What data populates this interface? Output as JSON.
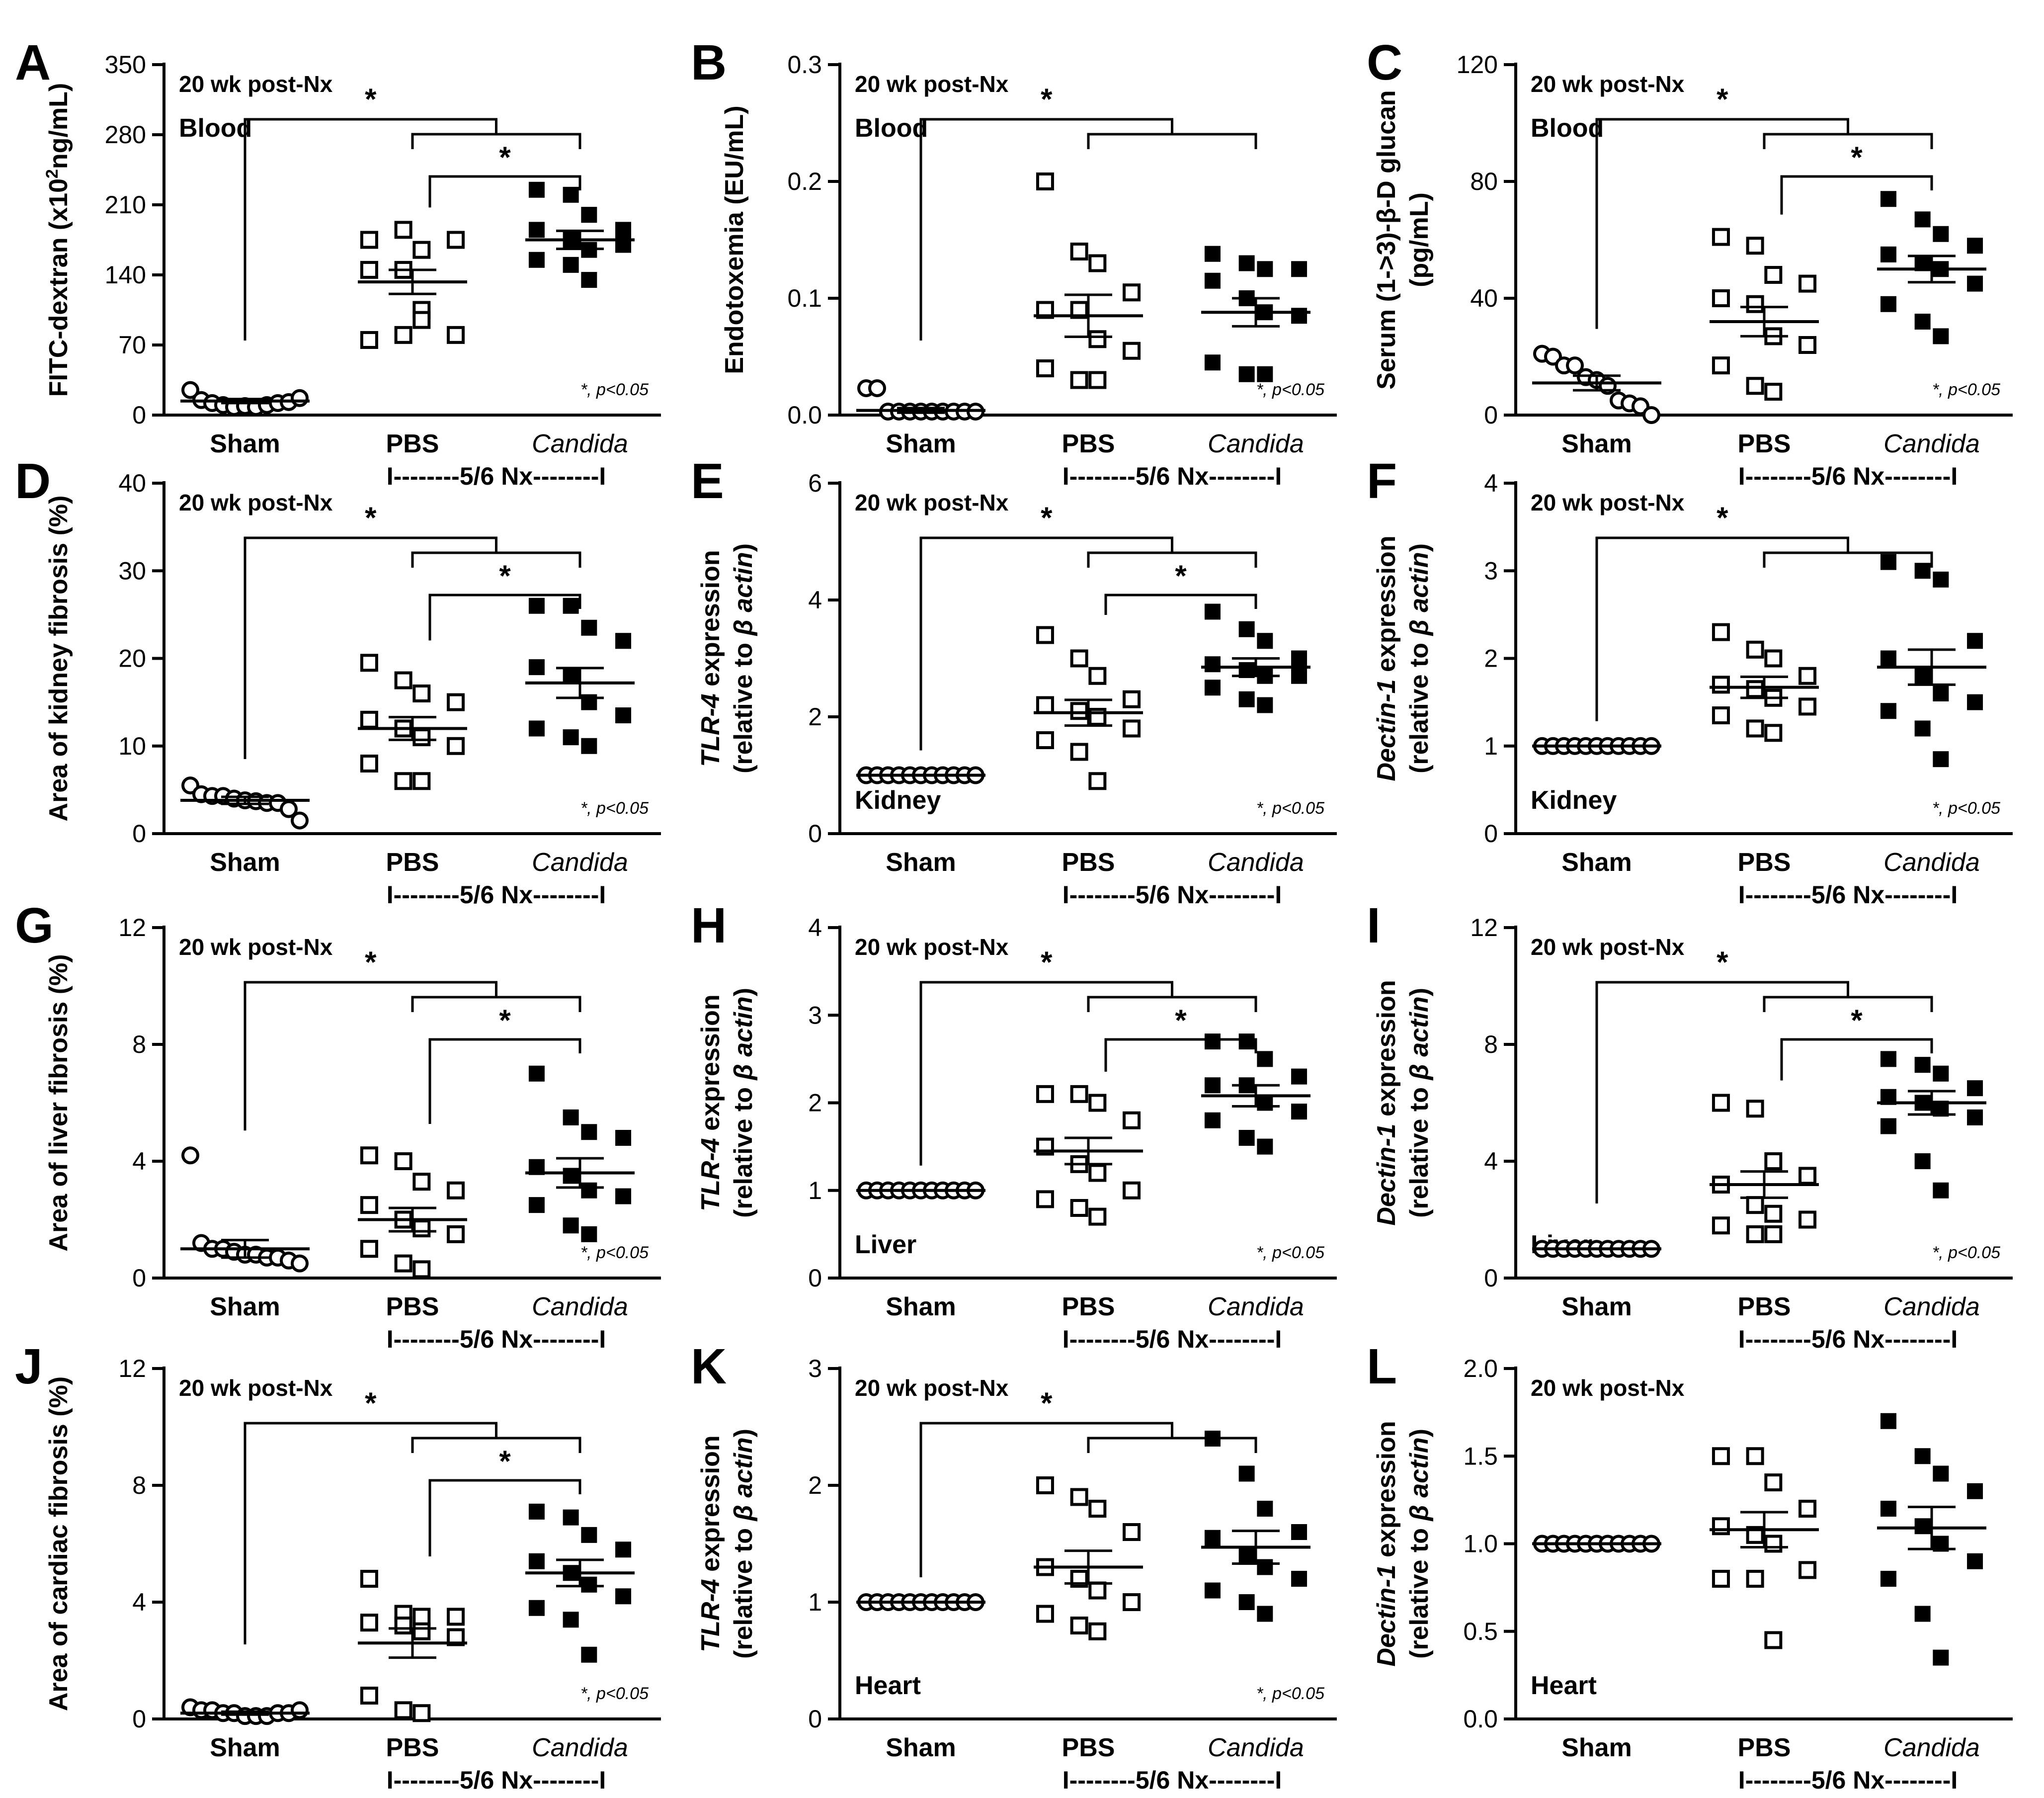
{
  "categories": [
    "Sham",
    "PBS",
    "Candida"
  ],
  "group_label": "I--------5/6 Nx--------I",
  "significance_note": "*, p<0.05",
  "star": "*",
  "chart_data": [
    {
      "type": "scatter",
      "letter": "A",
      "annotation": "20 wk post-Nx",
      "tissue": "Blood",
      "ylabel": [
        {
          "t": "FITC-dextran (x10"
        },
        {
          "t": "2",
          "sup": true
        },
        {
          "t": "ng/mL)"
        }
      ],
      "ylim": [
        0,
        350
      ],
      "yticks": [
        0,
        70,
        140,
        210,
        280,
        350
      ],
      "series": [
        {
          "values": [
            25,
            15,
            12,
            10,
            8,
            9,
            8,
            10,
            12,
            13,
            17
          ],
          "mean": 14,
          "sem": 2
        },
        {
          "values": [
            175,
            185,
            165,
            175,
            145,
            145,
            105,
            80,
            75,
            80,
            95
          ],
          "mean": 133,
          "sem": 12
        },
        {
          "values": [
            225,
            220,
            200,
            185,
            185,
            175,
            165,
            170,
            155,
            150,
            135
          ],
          "mean": 175,
          "sem": 9
        }
      ],
      "brackets": [
        [
          0,
          [
            1,
            2
          ]
        ],
        [
          1,
          2
        ]
      ],
      "legend_position": "bottom-right"
    },
    {
      "type": "scatter",
      "letter": "B",
      "annotation": "20 wk post-Nx",
      "tissue": "Blood",
      "ylabel": [
        {
          "t": "Endotoxemia (EU/mL)"
        }
      ],
      "ylim": [
        0,
        0.3
      ],
      "yticks": [
        "0.0",
        "0.1",
        "0.2",
        "0.3"
      ],
      "series": [
        {
          "values": [
            0.023,
            0.023,
            0.003,
            0.003,
            0.003,
            0.003,
            0.003,
            0.003,
            0.003,
            0.003,
            0.003
          ],
          "mean": 0.004,
          "sem": 0.002
        },
        {
          "values": [
            0.2,
            0.14,
            0.13,
            0.105,
            0.09,
            0.09,
            0.065,
            0.055,
            0.04,
            0.03,
            0.03
          ],
          "mean": 0.085,
          "sem": 0.018
        },
        {
          "values": [
            0.138,
            0.13,
            0.125,
            0.125,
            0.115,
            0.1,
            0.088,
            0.085,
            0.045,
            0.035,
            0.035
          ],
          "mean": 0.088,
          "sem": 0.012
        }
      ],
      "brackets": [
        [
          0,
          [
            1,
            2
          ]
        ]
      ],
      "legend_position": "bottom-right"
    },
    {
      "type": "scatter",
      "letter": "C",
      "annotation": "20 wk post-Nx",
      "tissue": "Blood",
      "ylabel": [
        {
          "t": "Serum (1->3)-β-D glucan"
        },
        {
          "t": "(pg/mL)",
          "line2": true
        }
      ],
      "ylim": [
        0,
        120
      ],
      "yticks": [
        0,
        40,
        80,
        120
      ],
      "series": [
        {
          "values": [
            21,
            20,
            17,
            17,
            13,
            12,
            10,
            5,
            4,
            3,
            0
          ],
          "mean": 11,
          "sem": 2.5
        },
        {
          "values": [
            61,
            58,
            48,
            45,
            40,
            38,
            27,
            24,
            17,
            10,
            8
          ],
          "mean": 32,
          "sem": 5
        },
        {
          "values": [
            74,
            67,
            62,
            58,
            55,
            52,
            50,
            45,
            38,
            32,
            27
          ],
          "mean": 50,
          "sem": 4.5
        }
      ],
      "brackets": [
        [
          0,
          [
            1,
            2
          ]
        ],
        [
          1,
          2
        ]
      ],
      "legend_position": "bottom-right"
    },
    {
      "type": "scatter",
      "letter": "D",
      "annotation": "20 wk post-Nx",
      "tissue": "",
      "ylabel": [
        {
          "t": "Area of kidney fibrosis (%)"
        }
      ],
      "ylim": [
        0,
        40
      ],
      "yticks": [
        0,
        10,
        20,
        30,
        40
      ],
      "series": [
        {
          "values": [
            5.5,
            4.5,
            4.3,
            4.3,
            4,
            3.8,
            3.7,
            3.5,
            3.5,
            2.8,
            1.5
          ],
          "mean": 3.8,
          "sem": 0.4
        },
        {
          "values": [
            19.5,
            17.5,
            16,
            15,
            13,
            12,
            11,
            10,
            8,
            6,
            6
          ],
          "mean": 12,
          "sem": 1.3
        },
        {
          "values": [
            26,
            26,
            23.5,
            22,
            19,
            18,
            15,
            13.5,
            12,
            11,
            10
          ],
          "mean": 17.2,
          "sem": 1.7
        }
      ],
      "brackets": [
        [
          0,
          [
            1,
            2
          ]
        ],
        [
          1,
          2
        ]
      ],
      "legend_position": "bottom-right"
    },
    {
      "type": "scatter",
      "letter": "E",
      "annotation": "20 wk post-Nx",
      "tissue": "Kidney",
      "ylabel": [
        {
          "t": "TLR-4",
          "i": true
        },
        {
          "t": " expression"
        },
        {
          "t": "(relative to ",
          "line2": true
        },
        {
          "t": "β actin",
          "i": true,
          "line2": true
        },
        {
          "t": ")",
          "line2": true
        }
      ],
      "ylim": [
        0,
        6
      ],
      "yticks": [
        0,
        2,
        4,
        6
      ],
      "series": [
        {
          "values": [
            1,
            1,
            1,
            1,
            1,
            1,
            1,
            1,
            1,
            1,
            1
          ],
          "mean": 1,
          "sem": 0
        },
        {
          "values": [
            3.4,
            3.0,
            2.7,
            2.3,
            2.2,
            2.1,
            2.0,
            1.8,
            1.6,
            1.4,
            0.9
          ],
          "mean": 2.07,
          "sem": 0.22
        },
        {
          "values": [
            3.8,
            3.5,
            3.3,
            3.0,
            2.9,
            2.8,
            2.7,
            2.7,
            2.5,
            2.3,
            2.2
          ],
          "mean": 2.85,
          "sem": 0.15
        }
      ],
      "brackets": [
        [
          0,
          [
            1,
            2
          ]
        ],
        [
          1,
          2
        ]
      ],
      "legend_position": "bottom-right"
    },
    {
      "type": "scatter",
      "letter": "F",
      "annotation": "20 wk post-Nx",
      "tissue": "Kidney",
      "ylabel": [
        {
          "t": "Dectin-1",
          "i": true
        },
        {
          "t": " expression"
        },
        {
          "t": "(relative to ",
          "line2": true
        },
        {
          "t": "β actin",
          "i": true,
          "line2": true
        },
        {
          "t": ")",
          "line2": true
        }
      ],
      "ylim": [
        0,
        4
      ],
      "yticks": [
        0,
        1,
        2,
        3,
        4
      ],
      "series": [
        {
          "values": [
            1,
            1,
            1,
            1,
            1,
            1,
            1,
            1,
            1,
            1,
            1
          ],
          "mean": 1,
          "sem": 0
        },
        {
          "values": [
            2.3,
            2.1,
            2.0,
            1.8,
            1.7,
            1.65,
            1.55,
            1.45,
            1.35,
            1.2,
            1.15
          ],
          "mean": 1.67,
          "sem": 0.12
        },
        {
          "values": [
            3.1,
            3.0,
            2.9,
            2.2,
            2.0,
            1.8,
            1.6,
            1.5,
            1.4,
            1.2,
            0.85
          ],
          "mean": 1.9,
          "sem": 0.2
        }
      ],
      "brackets": [
        [
          0,
          [
            1,
            2
          ]
        ]
      ],
      "legend_position": "bottom-right"
    },
    {
      "type": "scatter",
      "letter": "G",
      "annotation": "20 wk post-Nx",
      "tissue": "",
      "ylabel": [
        {
          "t": "Area of liver fibrosis (%)"
        }
      ],
      "ylim": [
        0,
        12
      ],
      "yticks": [
        0,
        4,
        8,
        12
      ],
      "series": [
        {
          "values": [
            4.2,
            1.2,
            1.0,
            1.0,
            0.9,
            0.8,
            0.8,
            0.7,
            0.7,
            0.6,
            0.5
          ],
          "mean": 1.0,
          "sem": 0.3
        },
        {
          "values": [
            4.2,
            4.0,
            3.3,
            3.0,
            2.5,
            2.0,
            1.7,
            1.5,
            1.0,
            0.5,
            0.3
          ],
          "mean": 2.0,
          "sem": 0.4
        },
        {
          "values": [
            7.0,
            5.5,
            5.0,
            4.8,
            3.8,
            3.5,
            3.0,
            2.8,
            2.5,
            1.8,
            1.5
          ],
          "mean": 3.6,
          "sem": 0.5
        }
      ],
      "brackets": [
        [
          0,
          [
            1,
            2
          ]
        ],
        [
          1,
          2
        ]
      ],
      "legend_position": "bottom-right"
    },
    {
      "type": "scatter",
      "letter": "H",
      "annotation": "20 wk post-Nx",
      "tissue": "Liver",
      "ylabel": [
        {
          "t": "TLR-4",
          "i": true
        },
        {
          "t": " expression"
        },
        {
          "t": "(relative to ",
          "line2": true
        },
        {
          "t": "β actin",
          "i": true,
          "line2": true
        },
        {
          "t": ")",
          "line2": true
        }
      ],
      "ylim": [
        0,
        4
      ],
      "yticks": [
        0,
        1,
        2,
        3,
        4
      ],
      "series": [
        {
          "values": [
            1,
            1,
            1,
            1,
            1,
            1,
            1,
            1,
            1,
            1,
            1
          ],
          "mean": 1,
          "sem": 0
        },
        {
          "values": [
            2.1,
            2.1,
            2.0,
            1.8,
            1.5,
            1.3,
            1.2,
            1.0,
            0.9,
            0.8,
            0.7
          ],
          "mean": 1.45,
          "sem": 0.15
        },
        {
          "values": [
            2.7,
            2.7,
            2.5,
            2.3,
            2.2,
            2.2,
            2.0,
            1.9,
            1.8,
            1.6,
            1.5
          ],
          "mean": 2.08,
          "sem": 0.12
        }
      ],
      "brackets": [
        [
          0,
          [
            1,
            2
          ]
        ],
        [
          1,
          2
        ]
      ],
      "legend_position": "bottom-right"
    },
    {
      "type": "scatter",
      "letter": "I",
      "annotation": "20 wk post-Nx",
      "tissue": "Liver",
      "ylabel": [
        {
          "t": "Dectin-1",
          "i": true
        },
        {
          "t": " expression"
        },
        {
          "t": "(relative to ",
          "line2": true
        },
        {
          "t": "β actin",
          "i": true,
          "line2": true
        },
        {
          "t": ")",
          "line2": true
        }
      ],
      "ylim": [
        0,
        12
      ],
      "yticks": [
        0,
        4,
        8,
        12
      ],
      "series": [
        {
          "values": [
            1,
            1,
            1,
            1,
            1,
            1,
            1,
            1,
            1,
            1,
            1
          ],
          "mean": 1,
          "sem": 0
        },
        {
          "values": [
            6.0,
            5.8,
            4.0,
            3.5,
            3.2,
            2.5,
            2.2,
            2.0,
            1.8,
            1.5,
            1.5
          ],
          "mean": 3.2,
          "sem": 0.45
        },
        {
          "values": [
            7.5,
            7.3,
            7.0,
            6.5,
            6.2,
            6.0,
            5.8,
            5.5,
            5.2,
            4.0,
            3.0
          ],
          "mean": 6.0,
          "sem": 0.4
        }
      ],
      "brackets": [
        [
          0,
          [
            1,
            2
          ]
        ],
        [
          1,
          2
        ]
      ],
      "legend_position": "bottom-right"
    },
    {
      "type": "scatter",
      "letter": "J",
      "annotation": "20 wk post-Nx",
      "tissue": "",
      "ylabel": [
        {
          "t": "Area of cardiac fibrosis (%)"
        }
      ],
      "ylim": [
        0,
        12
      ],
      "yticks": [
        0,
        4,
        8,
        12
      ],
      "series": [
        {
          "values": [
            0.4,
            0.3,
            0.3,
            0.2,
            0.2,
            0.1,
            0.1,
            0.1,
            0.2,
            0.2,
            0.3
          ],
          "mean": 0.2,
          "sem": 0.05
        },
        {
          "values": [
            4.8,
            3.6,
            3.5,
            3.5,
            3.3,
            3.2,
            3.0,
            2.8,
            0.8,
            0.3,
            0.2
          ],
          "mean": 2.6,
          "sem": 0.5
        },
        {
          "values": [
            7.1,
            6.9,
            6.3,
            5.8,
            5.4,
            5.0,
            4.6,
            4.2,
            3.8,
            3.4,
            2.2
          ],
          "mean": 5.0,
          "sem": 0.45
        }
      ],
      "brackets": [
        [
          0,
          [
            1,
            2
          ]
        ],
        [
          1,
          2
        ]
      ],
      "legend_position": "bottom-right"
    },
    {
      "type": "scatter",
      "letter": "K",
      "annotation": "20 wk post-Nx",
      "tissue": "Heart",
      "ylabel": [
        {
          "t": "TLR-4",
          "i": true
        },
        {
          "t": " expression"
        },
        {
          "t": "(relative to ",
          "line2": true
        },
        {
          "t": "β actin",
          "i": true,
          "line2": true
        },
        {
          "t": ")",
          "line2": true
        }
      ],
      "ylim": [
        0,
        3
      ],
      "yticks": [
        0,
        1,
        2,
        3
      ],
      "series": [
        {
          "values": [
            1,
            1,
            1,
            1,
            1,
            1,
            1,
            1,
            1,
            1,
            1
          ],
          "mean": 1,
          "sem": 0
        },
        {
          "values": [
            2.0,
            1.9,
            1.8,
            1.6,
            1.3,
            1.2,
            1.1,
            1.0,
            0.9,
            0.8,
            0.75
          ],
          "mean": 1.3,
          "sem": 0.14
        },
        {
          "values": [
            2.4,
            2.1,
            1.8,
            1.6,
            1.55,
            1.4,
            1.3,
            1.2,
            1.1,
            1.0,
            0.9
          ],
          "mean": 1.47,
          "sem": 0.14
        }
      ],
      "brackets": [
        [
          0,
          [
            1,
            2
          ]
        ]
      ],
      "legend_position": "bottom-right"
    },
    {
      "type": "scatter",
      "letter": "L",
      "annotation": "20 wk post-Nx",
      "tissue": "Heart",
      "ylabel": [
        {
          "t": "Dectin-1",
          "i": true
        },
        {
          "t": " expression"
        },
        {
          "t": "(relative to ",
          "line2": true
        },
        {
          "t": "β actin",
          "i": true,
          "line2": true
        },
        {
          "t": ")",
          "line2": true
        }
      ],
      "ylim": [
        0,
        2
      ],
      "yticks": [
        "0.0",
        "0.5",
        "1.0",
        "1.5",
        "2.0"
      ],
      "series": [
        {
          "values": [
            1,
            1,
            1,
            1,
            1,
            1,
            1,
            1,
            1,
            1,
            1
          ],
          "mean": 1,
          "sem": 0
        },
        {
          "values": [
            1.5,
            1.5,
            1.35,
            1.2,
            1.1,
            1.05,
            1.0,
            0.85,
            0.8,
            0.8,
            0.45
          ],
          "mean": 1.08,
          "sem": 0.1
        },
        {
          "values": [
            1.7,
            1.5,
            1.4,
            1.3,
            1.2,
            1.1,
            1.0,
            0.9,
            0.8,
            0.6,
            0.35
          ],
          "mean": 1.09,
          "sem": 0.12
        }
      ],
      "brackets": [],
      "legend_position": "none"
    }
  ]
}
